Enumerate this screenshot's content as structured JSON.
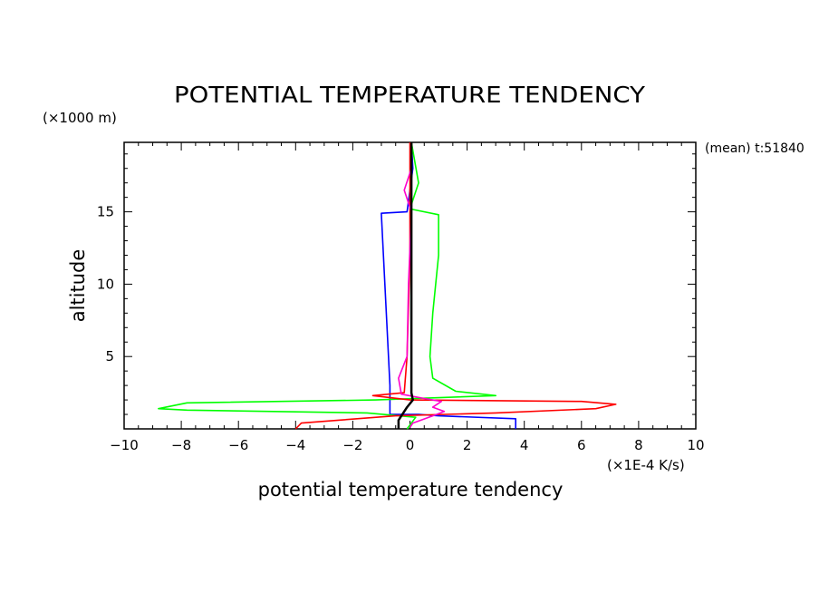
{
  "chart_data": {
    "type": "line",
    "title": "POTENTIAL TEMPERATURE TENDENCY",
    "xlabel": "potential temperature tendency",
    "ylabel": "altitude",
    "x_unit": "(×1E-4 K/s)",
    "y_unit": "(×1000 m)",
    "annotation": "(mean) t:51840",
    "xlim": [
      -10,
      10
    ],
    "ylim": [
      0,
      19.8
    ],
    "x_ticks": [
      "−10",
      "−8",
      "−6",
      "−4",
      "−2",
      "0",
      "2",
      "4",
      "6",
      "8",
      "10"
    ],
    "y_ticks": [
      "5",
      "10",
      "15"
    ],
    "grid": false,
    "series": [
      {
        "color": "#0000ff",
        "points": [
          [
            3.7,
            0
          ],
          [
            3.7,
            0.7
          ],
          [
            1.0,
            0.9
          ],
          [
            0.3,
            1.0
          ],
          [
            -0.7,
            1.0
          ],
          [
            -0.7,
            3.0
          ],
          [
            -1.0,
            14.9
          ],
          [
            -0.1,
            15.0
          ],
          [
            0.1,
            18.0
          ],
          [
            0.05,
            19.8
          ]
        ]
      },
      {
        "color": "#00ff00",
        "points": [
          [
            -0.1,
            0
          ],
          [
            0.2,
            0.8
          ],
          [
            -1.5,
            1.1
          ],
          [
            -7.8,
            1.3
          ],
          [
            -8.8,
            1.4
          ],
          [
            -7.8,
            1.8
          ],
          [
            -1.2,
            2.0
          ],
          [
            3.0,
            2.3
          ],
          [
            1.6,
            2.6
          ],
          [
            0.8,
            3.5
          ],
          [
            0.7,
            5.0
          ],
          [
            0.8,
            8.0
          ],
          [
            1.0,
            12.0
          ],
          [
            1.0,
            14.8
          ],
          [
            0.0,
            15.2
          ],
          [
            0.3,
            17.0
          ],
          [
            0.05,
            19.8
          ]
        ]
      },
      {
        "color": "#ff0000",
        "points": [
          [
            -4.0,
            0
          ],
          [
            -3.8,
            0.4
          ],
          [
            -2.5,
            0.6
          ],
          [
            -0.5,
            0.9
          ],
          [
            3.0,
            1.1
          ],
          [
            6.5,
            1.4
          ],
          [
            7.2,
            1.7
          ],
          [
            6.0,
            1.9
          ],
          [
            0,
            2.0
          ],
          [
            -1.3,
            2.3
          ],
          [
            -0.2,
            2.5
          ],
          [
            -0.1,
            5.0
          ],
          [
            0.0,
            12.0
          ],
          [
            0.0,
            19.8
          ]
        ]
      },
      {
        "color": "#ff00cc",
        "points": [
          [
            0,
            0.1
          ],
          [
            0.1,
            0.4
          ],
          [
            0.8,
            0.9
          ],
          [
            1.2,
            1.2
          ],
          [
            0.8,
            1.5
          ],
          [
            1.1,
            1.9
          ],
          [
            0.5,
            2.1
          ],
          [
            -0.3,
            2.4
          ],
          [
            -0.4,
            3.5
          ],
          [
            -0.1,
            5.0
          ],
          [
            -0.05,
            10.0
          ],
          [
            0.05,
            15.0
          ],
          [
            -0.2,
            16.5
          ],
          [
            0.05,
            18.0
          ],
          [
            0.05,
            19.8
          ]
        ]
      },
      {
        "color": "#000000",
        "points": [
          [
            -0.4,
            0
          ],
          [
            -0.4,
            0.6
          ],
          [
            -0.1,
            1.5
          ],
          [
            0.1,
            2.0
          ],
          [
            0.05,
            2.5
          ],
          [
            0.05,
            19.8
          ]
        ]
      }
    ]
  }
}
